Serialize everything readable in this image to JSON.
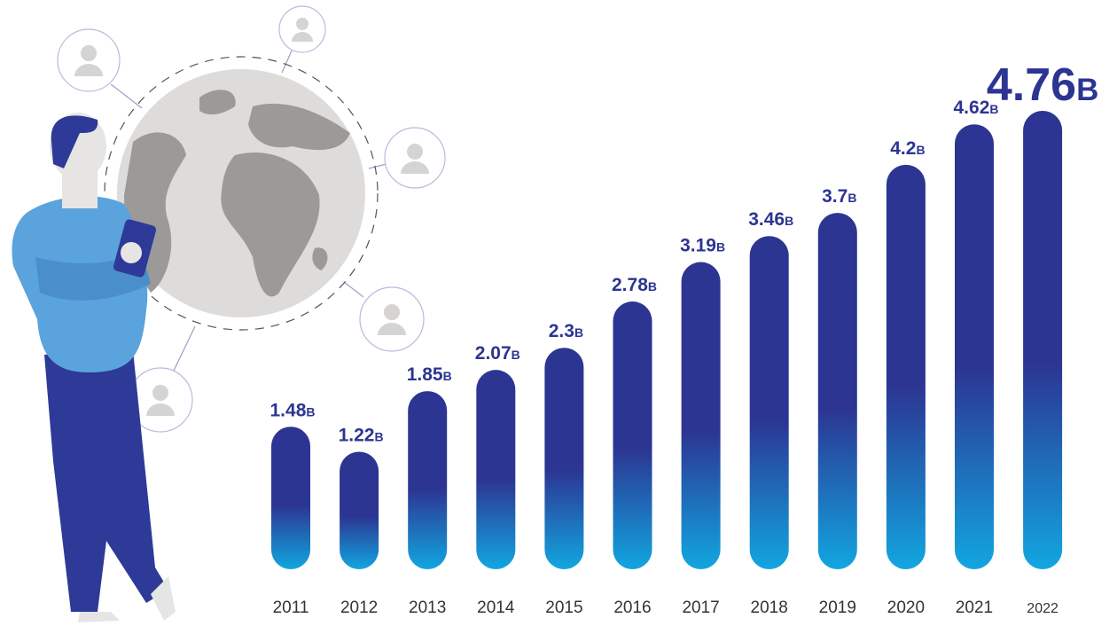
{
  "chart_data": {
    "type": "bar",
    "categories": [
      "2011",
      "2012",
      "2013",
      "2014",
      "2015",
      "2016",
      "2017",
      "2018",
      "2019",
      "2020",
      "2021",
      "2022"
    ],
    "values": [
      1.48,
      1.22,
      1.85,
      2.07,
      2.3,
      2.78,
      3.19,
      3.46,
      3.7,
      4.2,
      4.62,
      4.76
    ],
    "value_labels": [
      "1.48B",
      "1.22B",
      "1.85B",
      "2.07B",
      "2.3B",
      "2.78B",
      "3.19B",
      "3.46B",
      "3.7B",
      "4.2B",
      "4.62B",
      "4.76B"
    ],
    "color": [
      "#2c3592",
      "#12a6e0"
    ]
  }
}
